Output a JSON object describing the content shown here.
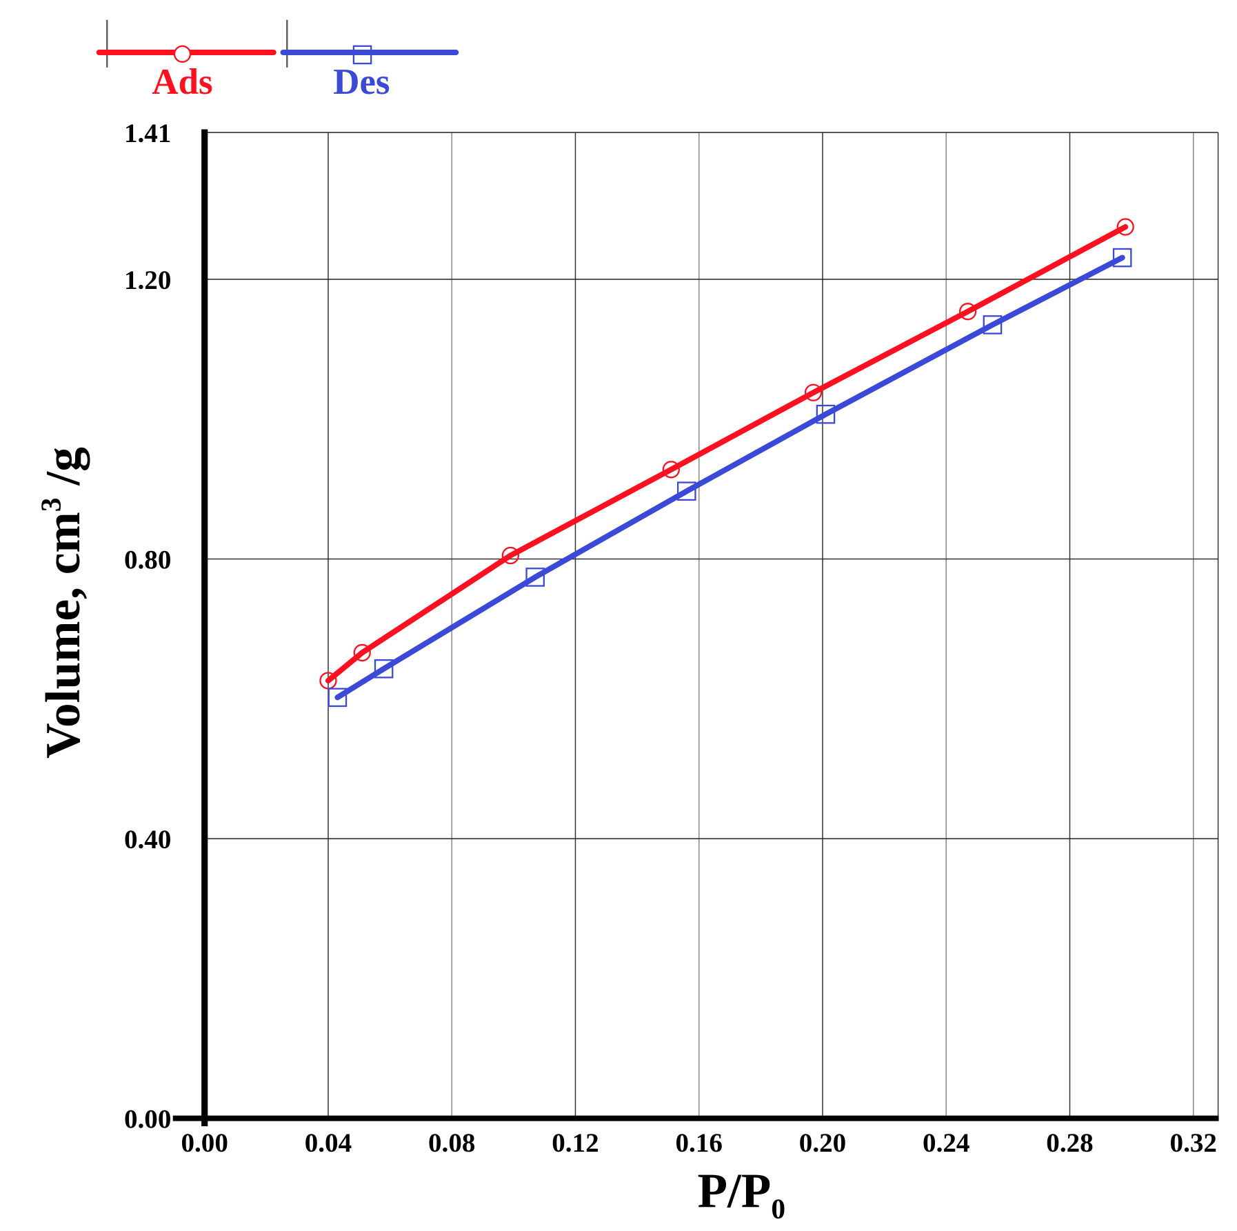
{
  "chart_data": {
    "type": "line",
    "title": "",
    "xlabel": "P/P",
    "xlabel_sub": "0",
    "ylabel": "Volume, cm",
    "ylabel_sup": "3",
    "ylabel_tail": " /g",
    "xlim": [
      0,
      0.328
    ],
    "ylim": [
      0,
      1.41
    ],
    "xticks": [
      "0.00",
      "0.04",
      "0.08",
      "0.12",
      "0.16",
      "0.20",
      "0.24",
      "0.28",
      "0.32"
    ],
    "xtick_values": [
      0,
      0.04,
      0.08,
      0.12,
      0.16,
      0.2,
      0.24,
      0.28,
      0.32
    ],
    "yticks": [
      "0.00",
      "0.40",
      "0.80",
      "1.20",
      "1.41"
    ],
    "ytick_values": [
      0,
      0.4,
      0.8,
      1.2,
      1.41
    ],
    "grid": true,
    "legend_position": "top-left",
    "series": [
      {
        "name": "Ads",
        "color": "#ff1020",
        "marker": "circle",
        "x": [
          0.04,
          0.051,
          0.099,
          0.151,
          0.197,
          0.247,
          0.298
        ],
        "y": [
          0.626,
          0.666,
          0.805,
          0.928,
          1.038,
          1.154,
          1.275
        ]
      },
      {
        "name": "Des",
        "color": "#3a4ad6",
        "marker": "square",
        "x": [
          0.043,
          0.058,
          0.107,
          0.156,
          0.201,
          0.255,
          0.297
        ],
        "y": [
          0.602,
          0.643,
          0.774,
          0.897,
          1.007,
          1.135,
          1.231
        ]
      }
    ]
  }
}
